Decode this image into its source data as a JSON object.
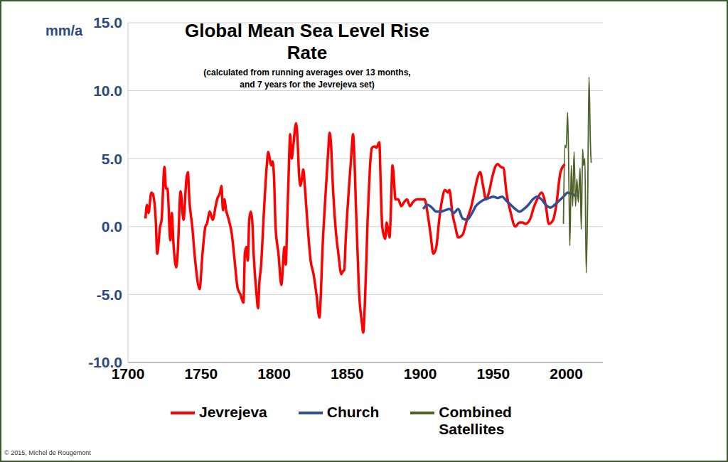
{
  "chart_data": {
    "type": "line",
    "title": "Global Mean Sea Level Rise Rate",
    "subtitle": [
      "(calculated from running averages over 13 months,",
      "and 7 years for the Jevrejeva set)"
    ],
    "y_label": "mm/a",
    "annotation": "© 2015, Michel de Rougemont",
    "xlim": [
      1700,
      2025
    ],
    "xticks": [
      1700,
      1750,
      1800,
      1850,
      1900,
      1950,
      2000
    ],
    "ylim": [
      -10,
      15
    ],
    "yticks": [
      {
        "value": -10,
        "label": "-10.0"
      },
      {
        "value": -5,
        "label": "-5.0"
      },
      {
        "value": 0,
        "label": "0.0"
      },
      {
        "value": 5,
        "label": "5.0"
      },
      {
        "value": 10,
        "label": "10.0"
      },
      {
        "value": 15,
        "label": "15.0"
      }
    ],
    "grid": true,
    "legend": "bottom",
    "marker": "none",
    "series": [
      {
        "name": "Jevrejeva",
        "color": "#ff0000",
        "x": [
          1712,
          1713,
          1714,
          1716,
          1717,
          1719,
          1720,
          1722,
          1723,
          1725,
          1726,
          1727,
          1729,
          1730,
          1731,
          1733,
          1734,
          1736,
          1738,
          1740,
          1741,
          1742,
          1744,
          1746,
          1749,
          1751,
          1753,
          1754,
          1756,
          1758,
          1760,
          1761,
          1763,
          1764,
          1765,
          1766,
          1767,
          1769,
          1771,
          1773,
          1775,
          1777,
          1779,
          1780,
          1781,
          1782,
          1783,
          1784,
          1785,
          1786,
          1788,
          1789,
          1790,
          1791,
          1793,
          1795,
          1796,
          1797,
          1798,
          1799,
          1800,
          1801,
          1803,
          1805,
          1806,
          1807,
          1808,
          1809,
          1810,
          1811,
          1812,
          1813,
          1815,
          1816,
          1817,
          1818,
          1819,
          1820,
          1821,
          1823,
          1825,
          1827,
          1829,
          1831,
          1832,
          1833,
          1835,
          1837,
          1838,
          1839,
          1840,
          1842,
          1844,
          1846,
          1847,
          1848,
          1849,
          1851,
          1853,
          1854,
          1855,
          1856,
          1857,
          1858,
          1860,
          1861,
          1862,
          1863,
          1864,
          1865,
          1866,
          1867,
          1869,
          1870,
          1872,
          1873,
          1874,
          1876,
          1877,
          1878,
          1879,
          1880,
          1881,
          1882,
          1883,
          1885,
          1887,
          1889,
          1891,
          1893,
          1895,
          1898,
          1901,
          1903,
          1905,
          1907,
          1909,
          1911,
          1913,
          1915,
          1917,
          1919,
          1920,
          1922,
          1924,
          1926,
          1929,
          1932,
          1935,
          1937,
          1939,
          1941,
          1943,
          1945,
          1947,
          1949,
          1951,
          1953,
          1955,
          1957,
          1959,
          1962,
          1965,
          1968,
          1970,
          1972,
          1975,
          1978,
          1980,
          1983,
          1986,
          1988,
          1991,
          1993,
          1996,
          1999
        ],
        "values": [
          0.6,
          1.6,
          1.0,
          2.5,
          2.4,
          0.5,
          -2.0,
          0.0,
          0.5,
          4.4,
          2.8,
          2.8,
          -1.0,
          1.0,
          -1.0,
          -3.0,
          -2.0,
          2.6,
          0.5,
          3.5,
          4.0,
          2.0,
          0.0,
          -2.5,
          -4.6,
          -2.0,
          0.0,
          0.2,
          1.1,
          0.5,
          1.5,
          2.0,
          2.5,
          3.0,
          1.2,
          2.0,
          1.3,
          0.5,
          -0.5,
          -2.5,
          -4.5,
          -5.0,
          -5.6,
          -2.0,
          -1.5,
          -2.5,
          0.5,
          1.1,
          0.5,
          -2.0,
          -5.0,
          -6.0,
          -4.0,
          -3.0,
          1.0,
          4.5,
          5.5,
          5.0,
          4.5,
          4.8,
          3.5,
          0.0,
          -2.0,
          -4.3,
          -3.0,
          -1.5,
          -2.8,
          0.5,
          4.0,
          6.8,
          5.0,
          5.8,
          7.6,
          6.5,
          4.0,
          3.0,
          3.5,
          4.2,
          3.0,
          0.0,
          -2.5,
          -3.5,
          -5.0,
          -6.7,
          -5.0,
          -2.0,
          2.0,
          5.5,
          6.9,
          6.0,
          3.5,
          0.0,
          -2.0,
          -3.5,
          -3.3,
          -3.2,
          -1.0,
          2.5,
          5.5,
          6.8,
          5.0,
          1.5,
          -1.5,
          -4.5,
          -7.0,
          -7.8,
          -6.0,
          -3.0,
          0.5,
          3.0,
          5.0,
          5.8,
          5.9,
          5.8,
          6.2,
          3.0,
          0.0,
          -0.9,
          0.3,
          -0.2,
          -0.8,
          1.5,
          4.5,
          3.5,
          2.0,
          2.0,
          1.5,
          1.8,
          2.0,
          1.5,
          1.8,
          2.0,
          2.0,
          2.0,
          1.0,
          -0.5,
          -2.0,
          -1.5,
          0.5,
          2.0,
          2.7,
          2.5,
          2.7,
          1.0,
          0.0,
          -0.8,
          -0.6,
          0.5,
          1.5,
          2.5,
          3.5,
          4.0,
          3.0,
          2.0,
          2.5,
          3.5,
          4.3,
          4.6,
          4.4,
          4.3,
          2.5,
          1.0,
          0.0,
          0.3,
          0.3,
          0.2,
          0.5,
          1.5,
          2.0,
          2.5,
          1.5,
          0.2,
          0.5,
          1.5,
          4.0,
          4.6
        ]
      },
      {
        "name": "Church",
        "color": "#2f4f9a",
        "x": [
          1902,
          1905,
          1908,
          1911,
          1914,
          1917,
          1920,
          1923,
          1926,
          1929,
          1932,
          1935,
          1938,
          1941,
          1944,
          1947,
          1950,
          1953,
          1956,
          1959,
          1962,
          1965,
          1968,
          1971,
          1974,
          1977,
          1980,
          1983,
          1986,
          1989,
          1992,
          1995,
          1998,
          2001,
          2004,
          2007
        ],
        "values": [
          1.3,
          1.6,
          1.4,
          1.1,
          1.1,
          1.2,
          1.3,
          1.0,
          1.3,
          0.6,
          0.5,
          0.9,
          1.5,
          1.8,
          2.0,
          2.1,
          2.2,
          2.1,
          2.2,
          1.9,
          1.6,
          1.3,
          1.1,
          1.3,
          1.6,
          2.0,
          2.2,
          2.0,
          1.6,
          1.4,
          1.6,
          1.9,
          2.2,
          2.5,
          2.4,
          2.2
        ]
      },
      {
        "name": "Combined Satellites",
        "color": "#4f6228",
        "x": [
          1998.0,
          1999.0,
          1999.9,
          2000.9,
          2001.9,
          2002.4,
          2003.4,
          2004.3,
          2005.3,
          2006.3,
          2007.2,
          2008.2,
          2009.4,
          2010.2,
          2011.2,
          2011.7,
          2012.7,
          2013.6,
          2014.6,
          2015.5,
          2016.5,
          2017.0
        ],
        "values": [
          0.2,
          6.0,
          5.8,
          8.4,
          2.0,
          -1.4,
          4.5,
          1.5,
          5.5,
          1.5,
          3.5,
          1.8,
          4.3,
          -0.2,
          5.7,
          4.5,
          5.0,
          -3.4,
          2.0,
          11.0,
          6.0,
          4.7
        ]
      }
    ]
  }
}
